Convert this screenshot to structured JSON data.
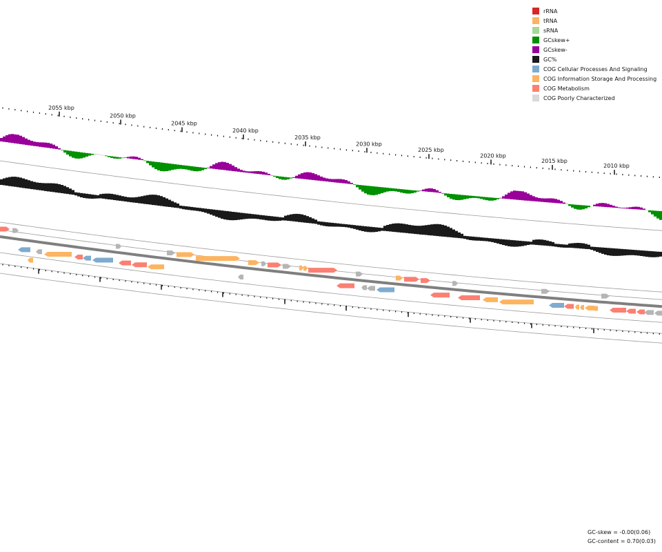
{
  "legend": [
    {
      "label": "rRNA",
      "color": "#d62728"
    },
    {
      "label": "tRNA",
      "color": "#fdb462"
    },
    {
      "label": "sRNA",
      "color": "#a6d996"
    },
    {
      "label": "GCskew+",
      "color": "#009100"
    },
    {
      "label": "GCskew-",
      "color": "#990099"
    },
    {
      "label": "GC%",
      "color": "#1a1a1a"
    },
    {
      "label": "COG Cellular Processes And Signaling",
      "color": "#7eabcf"
    },
    {
      "label": "COG Information Storage And Processing",
      "color": "#fdb462"
    },
    {
      "label": "COG Metabolism",
      "color": "#fb8072"
    },
    {
      "label": "COG Poorly Characterized",
      "color": "#d9d9d9"
    }
  ],
  "ruler": {
    "labels": [
      "2055 kbp",
      "2050 kbp",
      "2045 kbp",
      "2040 kbp",
      "2035 kbp",
      "2030 kbp",
      "2025 kbp",
      "2020 kbp",
      "2015 kbp",
      "2010 kbp"
    ],
    "start_kbp": 2055,
    "step_kbp": 5
  },
  "stats": {
    "gc_skew": "GC-skew = -0.00(0.06)",
    "gc_content": "GC-content = 0.70(0.03)"
  },
  "colors": {
    "skew_plus": "#009100",
    "skew_minus": "#990099",
    "gc": "#1a1a1a",
    "backbone": "#7f7f7f",
    "track_line": "#9a9a9a"
  }
}
